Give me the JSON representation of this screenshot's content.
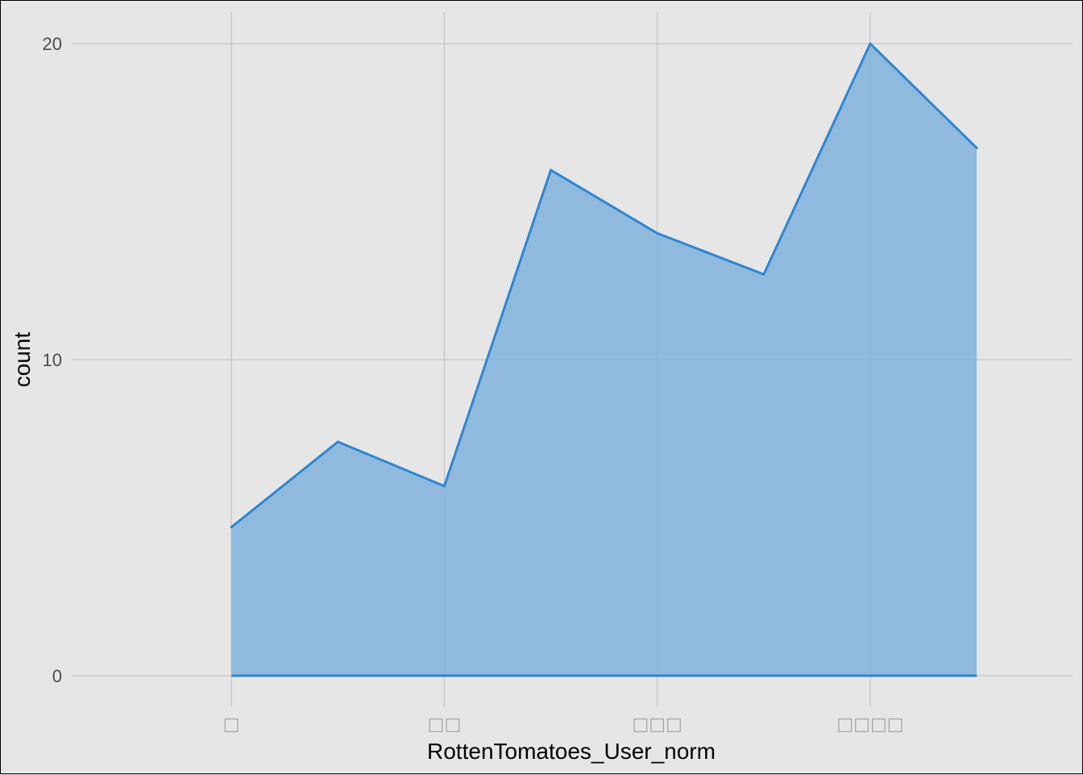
{
  "chart_data": {
    "type": "area",
    "xlabel": "RottenTomatoes_User_norm",
    "ylabel": "count",
    "x_tick_positions": [
      0,
      2,
      4,
      6
    ],
    "x_tick_labels": [
      "□",
      "□□",
      "□□□",
      "□□□□"
    ],
    "y_ticks": [
      0,
      10,
      20
    ],
    "xlim": [
      -1.5,
      7.9
    ],
    "ylim": [
      -1,
      21
    ],
    "grid": true,
    "series": [
      {
        "x": [
          0,
          1,
          2,
          3,
          4,
          5,
          6,
          7
        ],
        "values": [
          4.7,
          7.4,
          6.0,
          16.0,
          14.0,
          12.7,
          20.0,
          16.7
        ]
      }
    ],
    "colors": {
      "background": "#e6e6e6",
      "grid": "#bdbdbd",
      "line": "#2f86d1",
      "fill": "#7fb1dc"
    }
  }
}
